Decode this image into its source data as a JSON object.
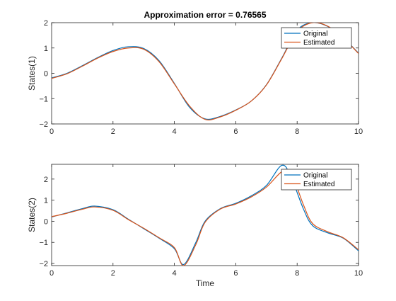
{
  "chart_data": [
    {
      "type": "line",
      "title": "Approximation error =  0.76565",
      "xlabel": "",
      "ylabel": "States(1)",
      "xlim": [
        0,
        10
      ],
      "ylim": [
        -2,
        2
      ],
      "xticks": [
        0,
        2,
        4,
        6,
        8,
        10
      ],
      "yticks": [
        -2,
        -1,
        0,
        1,
        2
      ],
      "legend_position": "top-right",
      "grid": false,
      "x": [
        0,
        0.5,
        1,
        1.5,
        2,
        2.5,
        3,
        3.5,
        4,
        4.5,
        5,
        5.5,
        6,
        6.5,
        7,
        7.5,
        8,
        8.5,
        9,
        9.5,
        10
      ],
      "series": [
        {
          "name": "Original",
          "color": "#0072BD",
          "values": [
            -0.18,
            0.0,
            0.3,
            0.62,
            0.9,
            1.05,
            0.98,
            0.5,
            -0.4,
            -1.35,
            -1.8,
            -1.7,
            -1.45,
            -1.1,
            -0.45,
            0.6,
            1.7,
            2.0,
            1.85,
            1.4,
            0.8
          ]
        },
        {
          "name": "Estimated",
          "color": "#D95319",
          "values": [
            -0.2,
            -0.02,
            0.28,
            0.6,
            0.86,
            1.0,
            0.95,
            0.46,
            -0.42,
            -1.3,
            -1.82,
            -1.72,
            -1.46,
            -1.1,
            -0.46,
            0.58,
            1.65,
            2.0,
            1.86,
            1.4,
            0.78
          ]
        }
      ]
    },
    {
      "type": "line",
      "title": "",
      "xlabel": "Time",
      "ylabel": "States(2)",
      "xlim": [
        0,
        10
      ],
      "ylim": [
        -2.1,
        2.7
      ],
      "xticks": [
        0,
        2,
        4,
        6,
        8,
        10
      ],
      "yticks": [
        -2,
        -1,
        0,
        1,
        2
      ],
      "legend_position": "top-right",
      "grid": false,
      "x": [
        0,
        0.5,
        1,
        1.4,
        2,
        2.5,
        3,
        3.5,
        4,
        4.3,
        4.7,
        5,
        5.5,
        6,
        6.5,
        7,
        7.5,
        7.8,
        8.2,
        8.5,
        9,
        9.5,
        10
      ],
      "series": [
        {
          "name": "Original",
          "color": "#0072BD",
          "values": [
            0.2,
            0.4,
            0.6,
            0.72,
            0.55,
            0.1,
            -0.35,
            -0.8,
            -1.3,
            -2.05,
            -1.0,
            0.0,
            0.6,
            0.85,
            1.2,
            1.7,
            2.65,
            2.1,
            0.6,
            -0.2,
            -0.55,
            -0.8,
            -1.4
          ]
        },
        {
          "name": "Estimated",
          "color": "#D95319",
          "values": [
            0.22,
            0.38,
            0.57,
            0.68,
            0.52,
            0.08,
            -0.33,
            -0.78,
            -1.25,
            -2.1,
            -1.1,
            -0.05,
            0.58,
            0.82,
            1.15,
            1.62,
            2.35,
            2.3,
            0.8,
            -0.1,
            -0.5,
            -0.78,
            -1.35
          ]
        }
      ]
    }
  ]
}
